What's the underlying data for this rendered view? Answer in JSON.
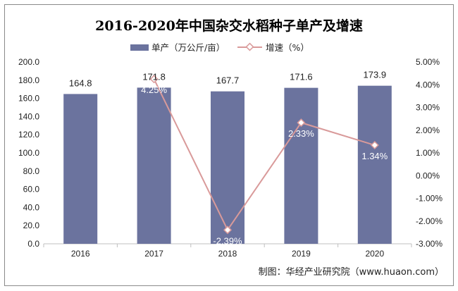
{
  "chart_data": {
    "type": "bar",
    "title": "2016-2020年中国杂交水稻种子单产及增速",
    "categories": [
      "2016",
      "2017",
      "2018",
      "2019",
      "2020"
    ],
    "series": [
      {
        "name": "单产（万公斤/亩）",
        "type": "bar",
        "axis": "left",
        "values": [
          164.8,
          171.8,
          167.7,
          171.6,
          173.9
        ],
        "labels": [
          "164.8",
          "171.8",
          "167.7",
          "171.6",
          "173.9"
        ],
        "color": "#6b739e"
      },
      {
        "name": "增速（%）",
        "type": "line",
        "axis": "right",
        "values": [
          null,
          4.25,
          -2.39,
          2.33,
          1.34
        ],
        "labels": [
          "",
          "4.25%",
          "-2.39%",
          "2.33%",
          "1.34%"
        ],
        "color": "#d99a9a"
      }
    ],
    "y_left": {
      "ylim": [
        0,
        200
      ],
      "ticks": [
        "0.0",
        "20.0",
        "40.0",
        "60.0",
        "80.0",
        "100.0",
        "120.0",
        "140.0",
        "160.0",
        "180.0",
        "200.0"
      ]
    },
    "y_right": {
      "ylim": [
        -3,
        5
      ],
      "ticks": [
        "-3.00%",
        "-2.00%",
        "-1.00%",
        "0.00%",
        "1.00%",
        "2.00%",
        "3.00%",
        "4.00%",
        "5.00%"
      ]
    },
    "grid": false,
    "legend": "top-center"
  },
  "source_note": "制图：华经产业研究院（www.huaon.com）"
}
